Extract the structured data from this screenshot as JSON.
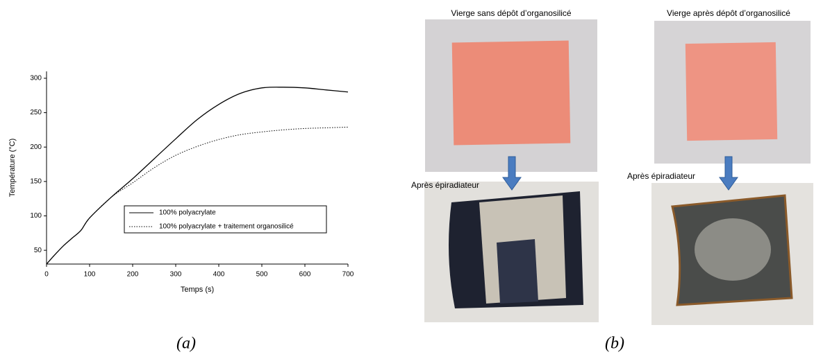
{
  "chart_data": {
    "type": "line",
    "x_label": "Temps (s)",
    "y_label": "Température (°C)",
    "x": [
      0,
      20,
      40,
      60,
      80,
      100,
      150,
      200,
      250,
      300,
      350,
      400,
      450,
      500,
      550,
      600,
      650,
      700
    ],
    "series": [
      {
        "name": "100% polyacrylate",
        "color": "#000000",
        "linestyle": "solid",
        "values": [
          30,
          44,
          57,
          68,
          79,
          97,
          127,
          154,
          183,
          212,
          240,
          262,
          278,
          286,
          287,
          286,
          283,
          280
        ]
      },
      {
        "name": "100% polyacrylate + traitement organosilicé",
        "color": "#000000",
        "linestyle": "dotted",
        "values": [
          30,
          44,
          57,
          68,
          79,
          97,
          127,
          148,
          170,
          188,
          201,
          211,
          218,
          222,
          225,
          227,
          228,
          229
        ]
      }
    ],
    "xlim": [
      0,
      700
    ],
    "xticks": [
      0,
      100,
      200,
      300,
      400,
      500,
      600,
      700
    ],
    "ylim": [
      30,
      310
    ],
    "yticks": [
      50,
      100,
      150,
      200,
      250,
      300
    ],
    "grid": false
  },
  "panel_a_label": "(a)",
  "panel_b_label": "(b)",
  "photos": {
    "top_left_caption": "Vierge sans dépôt d’organosilicé",
    "top_right_caption": "Vierge après dépôt d’organosilicé",
    "bottom_left_caption": "Après épiradiateur",
    "bottom_right_caption": "Après épiradiateur"
  }
}
